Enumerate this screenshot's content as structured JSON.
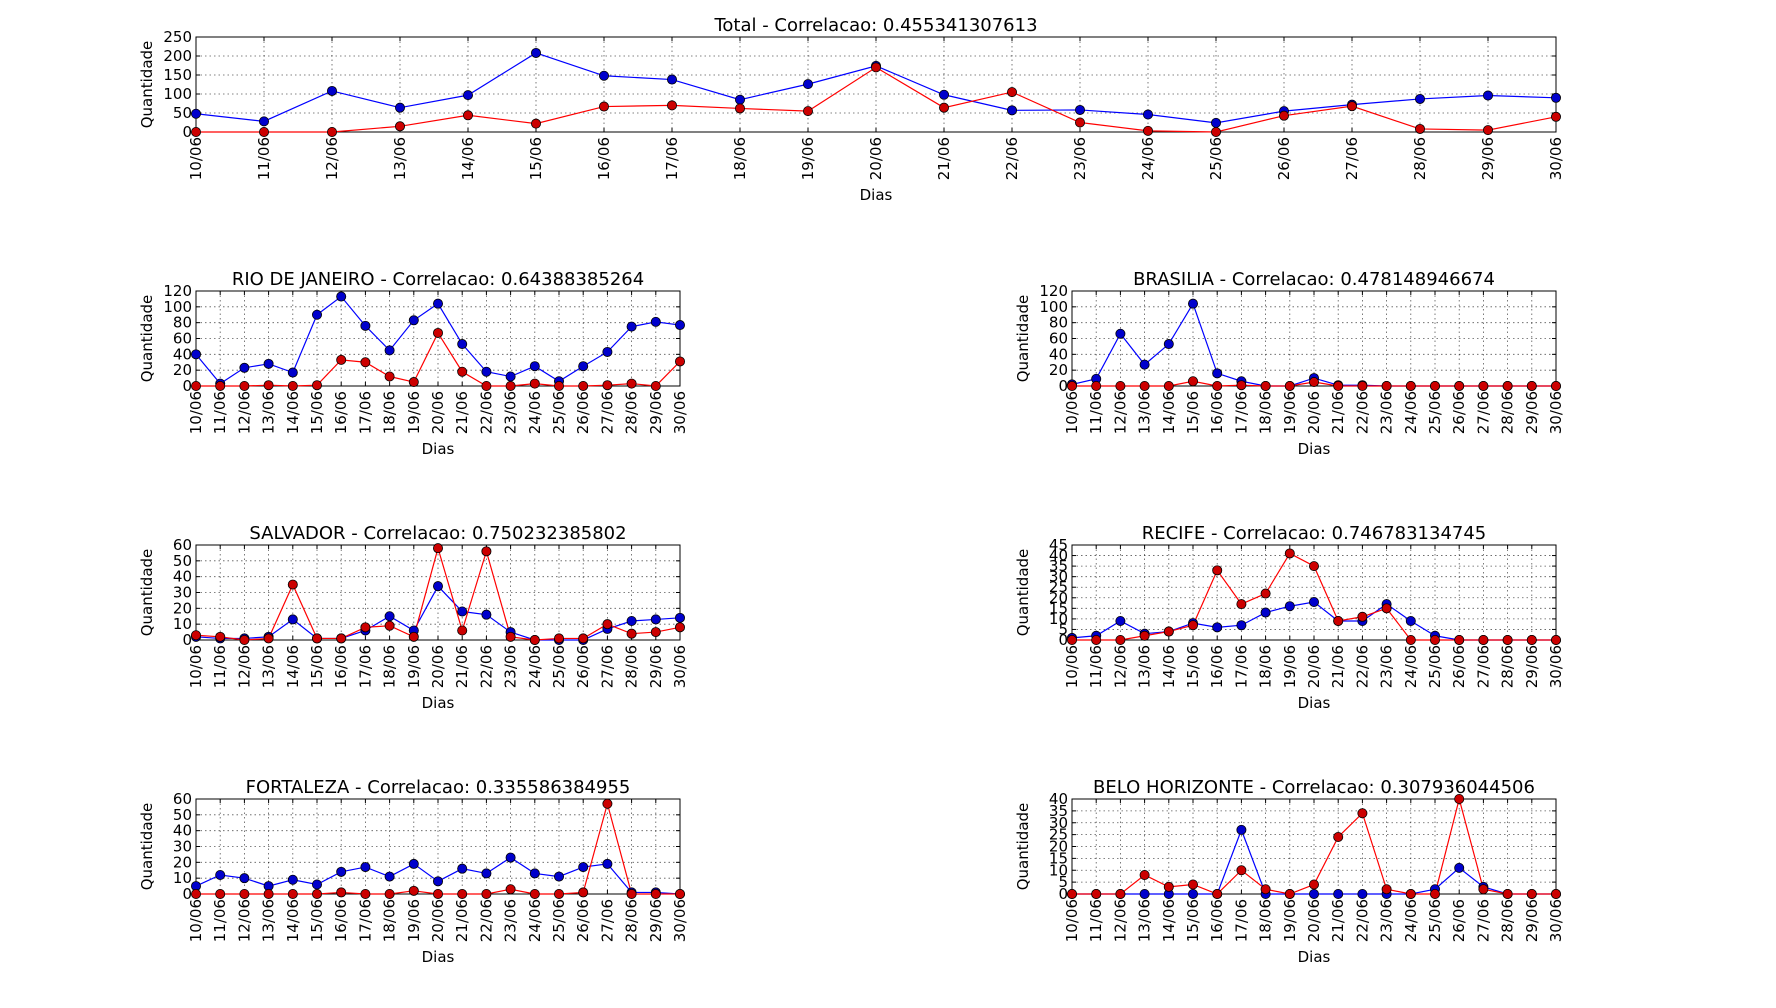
{
  "chart_data": [
    {
      "type": "line",
      "title": "Total - Correlacao: 0.455341307613",
      "xlabel": "Dias",
      "ylabel": "Quantidade",
      "categories": [
        "10/06",
        "11/06",
        "12/06",
        "13/06",
        "14/06",
        "15/06",
        "16/06",
        "17/06",
        "18/06",
        "19/06",
        "20/06",
        "21/06",
        "22/06",
        "23/06",
        "24/06",
        "25/06",
        "26/06",
        "27/06",
        "28/06",
        "29/06",
        "30/06"
      ],
      "ylim": [
        0,
        250
      ],
      "yticks": [
        0,
        50,
        100,
        150,
        200,
        250
      ],
      "grid": true,
      "series": [
        {
          "color": "#0000ff",
          "values": [
            48,
            28,
            108,
            64,
            97,
            208,
            148,
            138,
            85,
            126,
            174,
            98,
            57,
            58,
            46,
            24,
            55,
            72,
            87,
            96,
            90
          ]
        },
        {
          "color": "#ff0000",
          "values": [
            0,
            0,
            0,
            15,
            44,
            22,
            67,
            70,
            62,
            55,
            170,
            64,
            105,
            25,
            3,
            0,
            43,
            68,
            8,
            5,
            40
          ]
        }
      ]
    },
    {
      "type": "line",
      "title": "RIO DE JANEIRO - Correlacao: 0.64388385264",
      "xlabel": "Dias",
      "ylabel": "Quantidade",
      "categories": [
        "10/06",
        "11/06",
        "12/06",
        "13/06",
        "14/06",
        "15/06",
        "16/06",
        "17/06",
        "18/06",
        "19/06",
        "20/06",
        "21/06",
        "22/06",
        "23/06",
        "24/06",
        "25/06",
        "26/06",
        "27/06",
        "28/06",
        "29/06",
        "30/06"
      ],
      "ylim": [
        0,
        120
      ],
      "yticks": [
        0,
        20,
        40,
        60,
        80,
        100,
        120
      ],
      "grid": true,
      "series": [
        {
          "color": "#0000ff",
          "values": [
            40,
            3,
            23,
            28,
            17,
            90,
            113,
            76,
            45,
            83,
            104,
            53,
            18,
            12,
            25,
            6,
            25,
            43,
            75,
            81,
            77
          ]
        },
        {
          "color": "#ff0000",
          "values": [
            0,
            0,
            0,
            1,
            0,
            1,
            33,
            30,
            12,
            5,
            67,
            18,
            0,
            0,
            3,
            0,
            0,
            1,
            3,
            0,
            31
          ]
        }
      ]
    },
    {
      "type": "line",
      "title": "BRASILIA - Correlacao: 0.478148946674",
      "xlabel": "Dias",
      "ylabel": "Quantidade",
      "categories": [
        "10/06",
        "11/06",
        "12/06",
        "13/06",
        "14/06",
        "15/06",
        "16/06",
        "17/06",
        "18/06",
        "19/06",
        "20/06",
        "21/06",
        "22/06",
        "23/06",
        "24/06",
        "25/06",
        "26/06",
        "27/06",
        "28/06",
        "29/06",
        "30/06"
      ],
      "ylim": [
        0,
        120
      ],
      "yticks": [
        0,
        20,
        40,
        60,
        80,
        100,
        120
      ],
      "grid": true,
      "series": [
        {
          "color": "#0000ff",
          "values": [
            2,
            9,
            66,
            27,
            53,
            104,
            16,
            6,
            0,
            0,
            10,
            1,
            1,
            0,
            0,
            0,
            0,
            0,
            0,
            0,
            0
          ]
        },
        {
          "color": "#ff0000",
          "values": [
            0,
            0,
            0,
            0,
            0,
            6,
            0,
            1,
            0,
            0,
            5,
            0,
            0,
            0,
            0,
            0,
            0,
            0,
            0,
            0,
            0
          ]
        }
      ]
    },
    {
      "type": "line",
      "title": "SALVADOR - Correlacao: 0.750232385802",
      "xlabel": "Dias",
      "ylabel": "Quantidade",
      "categories": [
        "10/06",
        "11/06",
        "12/06",
        "13/06",
        "14/06",
        "15/06",
        "16/06",
        "17/06",
        "18/06",
        "19/06",
        "20/06",
        "21/06",
        "22/06",
        "23/06",
        "24/06",
        "25/06",
        "26/06",
        "27/06",
        "28/06",
        "29/06",
        "30/06"
      ],
      "ylim": [
        0,
        60
      ],
      "yticks": [
        0,
        10,
        20,
        30,
        40,
        50,
        60
      ],
      "grid": true,
      "series": [
        {
          "color": "#0000ff",
          "values": [
            2,
            1,
            1,
            2,
            13,
            1,
            1,
            6,
            15,
            6,
            34,
            18,
            16,
            5,
            0,
            0,
            0,
            7,
            12,
            13,
            14
          ]
        },
        {
          "color": "#ff0000",
          "values": [
            3,
            2,
            0,
            1,
            35,
            1,
            1,
            8,
            9,
            2,
            58,
            6,
            56,
            2,
            0,
            1,
            1,
            10,
            4,
            5,
            8
          ]
        }
      ]
    },
    {
      "type": "line",
      "title": "RECIFE - Correlacao: 0.746783134745",
      "xlabel": "Dias",
      "ylabel": "Quantidade",
      "categories": [
        "10/06",
        "11/06",
        "12/06",
        "13/06",
        "14/06",
        "15/06",
        "16/06",
        "17/06",
        "18/06",
        "19/06",
        "20/06",
        "21/06",
        "22/06",
        "23/06",
        "24/06",
        "25/06",
        "26/06",
        "27/06",
        "28/06",
        "29/06",
        "30/06"
      ],
      "ylim": [
        0,
        45
      ],
      "yticks": [
        0,
        5,
        10,
        15,
        20,
        25,
        30,
        35,
        40,
        45
      ],
      "grid": true,
      "series": [
        {
          "color": "#0000ff",
          "values": [
            1,
            2,
            9,
            3,
            4,
            8,
            6,
            7,
            13,
            16,
            18,
            9,
            9,
            17,
            9,
            2,
            0,
            0,
            0,
            0,
            0
          ]
        },
        {
          "color": "#ff0000",
          "values": [
            0,
            0,
            0,
            2,
            4,
            7,
            33,
            17,
            22,
            41,
            35,
            9,
            11,
            15,
            0,
            0,
            0,
            0,
            0,
            0,
            0
          ]
        }
      ]
    },
    {
      "type": "line",
      "title": "FORTALEZA - Correlacao: 0.335586384955",
      "xlabel": "Dias",
      "ylabel": "Quantidade",
      "categories": [
        "10/06",
        "11/06",
        "12/06",
        "13/06",
        "14/06",
        "15/06",
        "16/06",
        "17/06",
        "18/06",
        "19/06",
        "20/06",
        "21/06",
        "22/06",
        "23/06",
        "24/06",
        "25/06",
        "26/06",
        "27/06",
        "28/06",
        "29/06",
        "30/06"
      ],
      "ylim": [
        0,
        60
      ],
      "yticks": [
        0,
        10,
        20,
        30,
        40,
        50,
        60
      ],
      "grid": true,
      "series": [
        {
          "color": "#0000ff",
          "values": [
            5,
            12,
            10,
            5,
            9,
            6,
            14,
            17,
            11,
            19,
            8,
            16,
            13,
            23,
            13,
            11,
            17,
            19,
            1,
            1,
            0
          ]
        },
        {
          "color": "#ff0000",
          "values": [
            0,
            0,
            0,
            0,
            0,
            0,
            1,
            0,
            0,
            2,
            0,
            0,
            0,
            3,
            0,
            0,
            1,
            57,
            0,
            0,
            0
          ]
        }
      ]
    },
    {
      "type": "line",
      "title": "BELO HORIZONTE - Correlacao: 0.307936044506",
      "xlabel": "Dias",
      "ylabel": "Quantidade",
      "categories": [
        "10/06",
        "11/06",
        "12/06",
        "13/06",
        "14/06",
        "15/06",
        "16/06",
        "17/06",
        "18/06",
        "19/06",
        "20/06",
        "21/06",
        "22/06",
        "23/06",
        "24/06",
        "25/06",
        "26/06",
        "27/06",
        "28/06",
        "29/06",
        "30/06"
      ],
      "ylim": [
        0,
        40
      ],
      "yticks": [
        0,
        5,
        10,
        15,
        20,
        25,
        30,
        35,
        40
      ],
      "grid": true,
      "series": [
        {
          "color": "#0000ff",
          "values": [
            0,
            0,
            0,
            0,
            0,
            0,
            0,
            27,
            0,
            0,
            0,
            0,
            0,
            0,
            0,
            2,
            11,
            3,
            0,
            0,
            0
          ]
        },
        {
          "color": "#ff0000",
          "values": [
            0,
            0,
            0,
            8,
            3,
            4,
            0,
            10,
            2,
            0,
            4,
            24,
            34,
            2,
            0,
            0,
            40,
            2,
            0,
            0,
            0
          ]
        }
      ]
    }
  ]
}
